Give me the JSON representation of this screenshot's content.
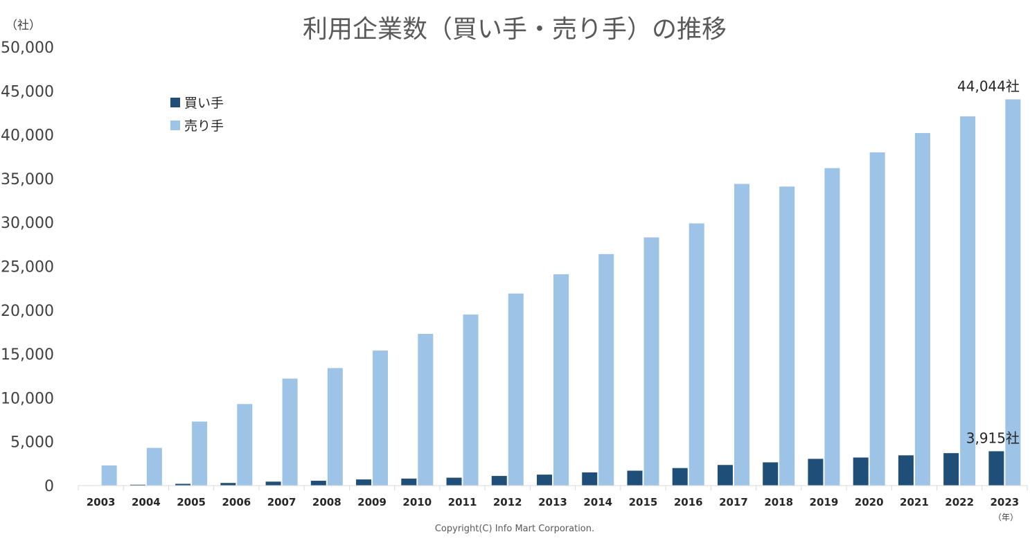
{
  "chart_data": {
    "type": "bar",
    "title": "利用企業数（買い手・売り手）の推移",
    "ylabel": "（社）",
    "xlabel_unit": "（年）",
    "ylim": [
      0,
      50000
    ],
    "yticks": [
      "0",
      "5,000",
      "10,000",
      "15,000",
      "20,000",
      "25,000",
      "30,000",
      "35,000",
      "40,000",
      "45,000",
      "50,000"
    ],
    "ytick_values": [
      0,
      5000,
      10000,
      15000,
      20000,
      25000,
      30000,
      35000,
      40000,
      45000,
      50000
    ],
    "categories": [
      "2003",
      "2004",
      "2005",
      "2006",
      "2007",
      "2008",
      "2009",
      "2010",
      "2011",
      "2012",
      "2013",
      "2014",
      "2015",
      "2016",
      "2017",
      "2018",
      "2019",
      "2020",
      "2021",
      "2022",
      "2023"
    ],
    "series": [
      {
        "name": "買い手",
        "color": "#1f4e79",
        "values": [
          0,
          100,
          200,
          300,
          450,
          550,
          700,
          800,
          900,
          1100,
          1250,
          1500,
          1700,
          2000,
          2350,
          2650,
          3050,
          3200,
          3450,
          3700,
          3915
        ]
      },
      {
        "name": "売り手",
        "color": "#9dc3e6",
        "values": [
          2300,
          4300,
          7300,
          9300,
          12200,
          13400,
          15400,
          17300,
          19500,
          21900,
          24100,
          26400,
          28300,
          29900,
          34400,
          34100,
          36200,
          38000,
          40200,
          42100,
          44044
        ]
      }
    ],
    "legend_position": "top-left",
    "annotations": [
      {
        "series": 1,
        "index": 20,
        "text": "44,044社"
      },
      {
        "series": 0,
        "index": 20,
        "text": "3,915社"
      }
    ],
    "grid": false
  },
  "footer": {
    "copyright": "Copyright(C) Info Mart Corporation."
  }
}
